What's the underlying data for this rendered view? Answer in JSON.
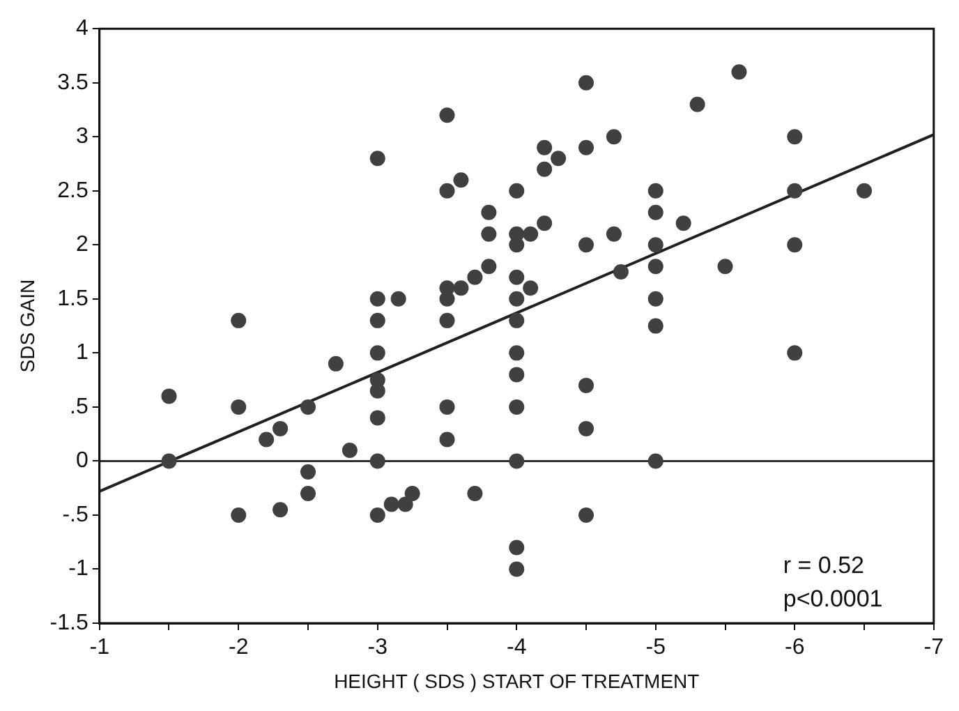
{
  "chart_data": {
    "type": "scatter",
    "xlabel": "HEIGHT ( SDS ) START OF TREATMENT",
    "ylabel": "SDS GAIN",
    "xlim": [
      -1,
      -7
    ],
    "xticks": [
      -1,
      {
        "value": -1.5,
        "label": null
      },
      -2,
      {
        "value": -2.5,
        "label": null
      },
      -3,
      {
        "value": -3.5,
        "label": null
      },
      -4,
      {
        "value": -4.5,
        "label": null
      },
      -5,
      {
        "value": -5.5,
        "label": null
      },
      -6,
      {
        "value": -6.5,
        "label": null
      },
      -7
    ],
    "ylim": [
      -1.5,
      4
    ],
    "yticks": [
      {
        "value": -1.5,
        "label": "-1.5"
      },
      -1,
      {
        "value": -0.5,
        "label": "-.5"
      },
      0,
      {
        "value": 0.5,
        "label": ".5"
      },
      1,
      1.5,
      2,
      2.5,
      3,
      3.5,
      4
    ],
    "grid": false,
    "legend": false,
    "marker": "circle",
    "series": [
      {
        "type": "scatter",
        "color": "#404040",
        "x": [
          -1.5,
          -1.5,
          -2,
          -2,
          -2,
          -2.2,
          -2.3,
          -2.3,
          -2.5,
          -2.5,
          -2.5,
          -2.7,
          -2.8,
          -3,
          -3,
          -3,
          -3,
          -3,
          -3,
          -3,
          -3,
          -3,
          -3.15,
          -3.1,
          -3.2,
          -3.25,
          -3.5,
          -4.5,
          -5.6,
          -5.3,
          -4.7,
          -6,
          -4.2,
          -4.3,
          -4.5,
          -4.2,
          -3.6,
          -3.5,
          -4,
          -5,
          -6,
          -6.5,
          -3.8,
          -5,
          -5.2,
          -4.2,
          -3.8,
          -4,
          -4,
          -4.1,
          -4.7,
          -4.5,
          -5,
          -6,
          -4.75,
          -5,
          -5.5,
          -3.8,
          -3.7,
          -3.6,
          -3.5,
          -3.5,
          -3.5,
          -4,
          -4.1,
          -4,
          -4,
          -5,
          -5,
          -6,
          -4,
          -4,
          -4,
          -3.5,
          -3.5,
          -4.5,
          -4.5,
          -4,
          -5,
          -3.7,
          -4.5,
          -4,
          -4
        ],
        "values": [
          0.6,
          0,
          1.3,
          0.5,
          -0.5,
          0.2,
          0.3,
          -0.45,
          0.5,
          -0.1,
          -0.3,
          0.9,
          0.1,
          2.8,
          1.5,
          1.3,
          1,
          0.75,
          0.65,
          0.4,
          0,
          -0.5,
          1.5,
          -0.4,
          -0.4,
          -0.3,
          3.2,
          3.5,
          3.6,
          3.3,
          3,
          3,
          2.9,
          2.8,
          2.9,
          2.7,
          2.6,
          2.5,
          2.5,
          2.5,
          2.5,
          2.5,
          2.3,
          2.3,
          2.2,
          2.2,
          2.1,
          2.1,
          2,
          2.1,
          2.1,
          2,
          2,
          2,
          1.75,
          1.8,
          1.8,
          1.8,
          1.7,
          1.6,
          1.6,
          1.5,
          1.3,
          1.7,
          1.6,
          1.5,
          1.3,
          1.5,
          1.25,
          1,
          1,
          0.8,
          0.5,
          0.5,
          0.2,
          0.7,
          0.3,
          0,
          0,
          -0.3,
          -0.5,
          -0.8,
          -1
        ]
      },
      {
        "type": "line",
        "color": "#202020",
        "line_style": "solid",
        "marker": "none",
        "x": [
          -1,
          -7
        ],
        "values": [
          -0.28,
          3.02
        ]
      }
    ],
    "ref_lines": [
      {
        "axis": "y",
        "value": 0,
        "color": "#303030",
        "line_style": "solid"
      }
    ],
    "annotations": [
      "r = 0.52",
      "p<0.0001"
    ]
  }
}
